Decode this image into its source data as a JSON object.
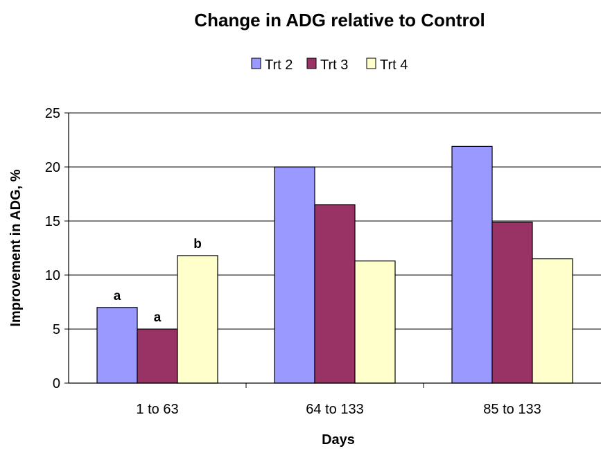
{
  "chart_data": {
    "type": "bar",
    "title": "Change in ADG relative to Control",
    "xlabel": "Days",
    "ylabel": "Improvement in ADG, %",
    "categories": [
      "1 to 63",
      "64 to 133",
      "85 to 133"
    ],
    "series": [
      {
        "name": "Trt 2",
        "color": "#9999ff",
        "values": [
          7.0,
          20.0,
          21.9
        ]
      },
      {
        "name": "Trt 3",
        "color": "#993366",
        "values": [
          5.0,
          16.5,
          14.9
        ]
      },
      {
        "name": "Trt 4",
        "color": "#ffffcc",
        "values": [
          11.8,
          11.3,
          11.5
        ]
      }
    ],
    "ylim": [
      0,
      25
    ],
    "yticks": [
      0,
      5,
      10,
      15,
      20,
      25
    ],
    "grid": true,
    "legend_position": "top",
    "annotations": [
      {
        "text": "a",
        "category": 0,
        "series": 0
      },
      {
        "text": "a",
        "category": 0,
        "series": 1
      },
      {
        "text": "b",
        "category": 0,
        "series": 2
      }
    ]
  }
}
